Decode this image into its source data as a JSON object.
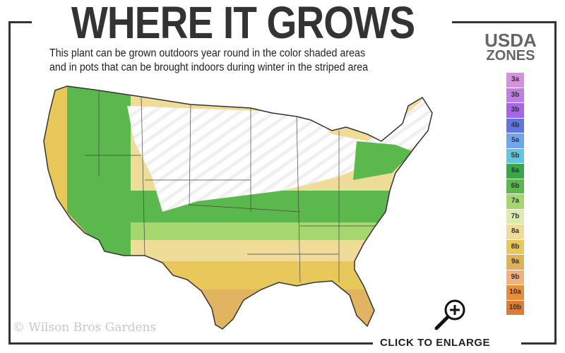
{
  "header": {
    "title": "WHERE IT GROWS",
    "subtitle_line1": "This plant can be grown outdoors year round in the color shaded areas",
    "subtitle_line2": "and in pots that can be brought indoors during winter in the striped area"
  },
  "legend": {
    "title_line1": "USDA",
    "title_line2": "ZONES",
    "zones": [
      {
        "label": "3a",
        "color": "#d98fe0"
      },
      {
        "label": "3b",
        "color": "#c07fe0"
      },
      {
        "label": "3b",
        "color": "#a965e8"
      },
      {
        "label": "4b",
        "color": "#5f76e0"
      },
      {
        "label": "5a",
        "color": "#6fa4f2"
      },
      {
        "label": "5b",
        "color": "#5ec6e0"
      },
      {
        "label": "6a",
        "color": "#3aa64a"
      },
      {
        "label": "6b",
        "color": "#5ab84c"
      },
      {
        "label": "7a",
        "color": "#a6d66e"
      },
      {
        "label": "7b",
        "color": "#dcecae"
      },
      {
        "label": "8a",
        "color": "#eedc98"
      },
      {
        "label": "8b",
        "color": "#e8c85a"
      },
      {
        "label": "9a",
        "color": "#dcb25a"
      },
      {
        "label": "9b",
        "color": "#f0b27c"
      },
      {
        "label": "10a",
        "color": "#e88e3a"
      },
      {
        "label": "10b",
        "color": "#e07a38"
      }
    ]
  },
  "map": {
    "grown_zones": [
      "6a",
      "6b",
      "7a",
      "7b",
      "8a",
      "8b",
      "9a",
      "9b",
      "10a",
      "10b"
    ],
    "striped_area": "pots indoors during winter"
  },
  "footer": {
    "enlarge_label": "CLICK TO ENLARGE",
    "enlarge_icon": "zoom-in-icon",
    "watermark": "© Wilson Bros Gardens"
  }
}
